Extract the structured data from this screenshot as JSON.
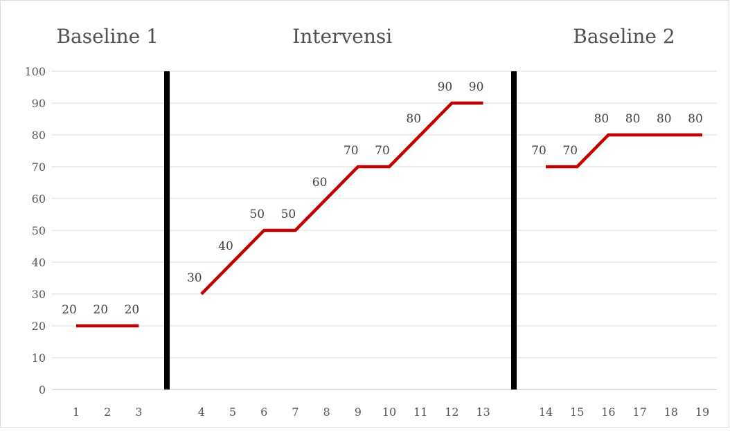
{
  "chart_data": {
    "type": "line",
    "title": "",
    "xlabel": "",
    "ylabel": "",
    "ylim": [
      0,
      100
    ],
    "yticks": [
      0,
      10,
      20,
      30,
      40,
      50,
      60,
      70,
      80,
      90,
      100
    ],
    "grid": true,
    "legend": "none",
    "series_color": "#c00000",
    "divider_color": "#000000",
    "phases": [
      {
        "title": "Baseline 1",
        "x": [
          "1",
          "2",
          "3"
        ],
        "values": [
          20,
          20,
          20
        ]
      },
      {
        "title": "Intervensi",
        "x": [
          "4",
          "5",
          "6",
          "7",
          "8",
          "9",
          "10",
          "11",
          "12",
          "13"
        ],
        "values": [
          30,
          40,
          50,
          50,
          60,
          70,
          70,
          80,
          90,
          90
        ]
      },
      {
        "title": "Baseline 2",
        "x": [
          "14",
          "15",
          "16",
          "17",
          "18",
          "19"
        ],
        "values": [
          70,
          70,
          80,
          80,
          80,
          80
        ]
      }
    ]
  }
}
